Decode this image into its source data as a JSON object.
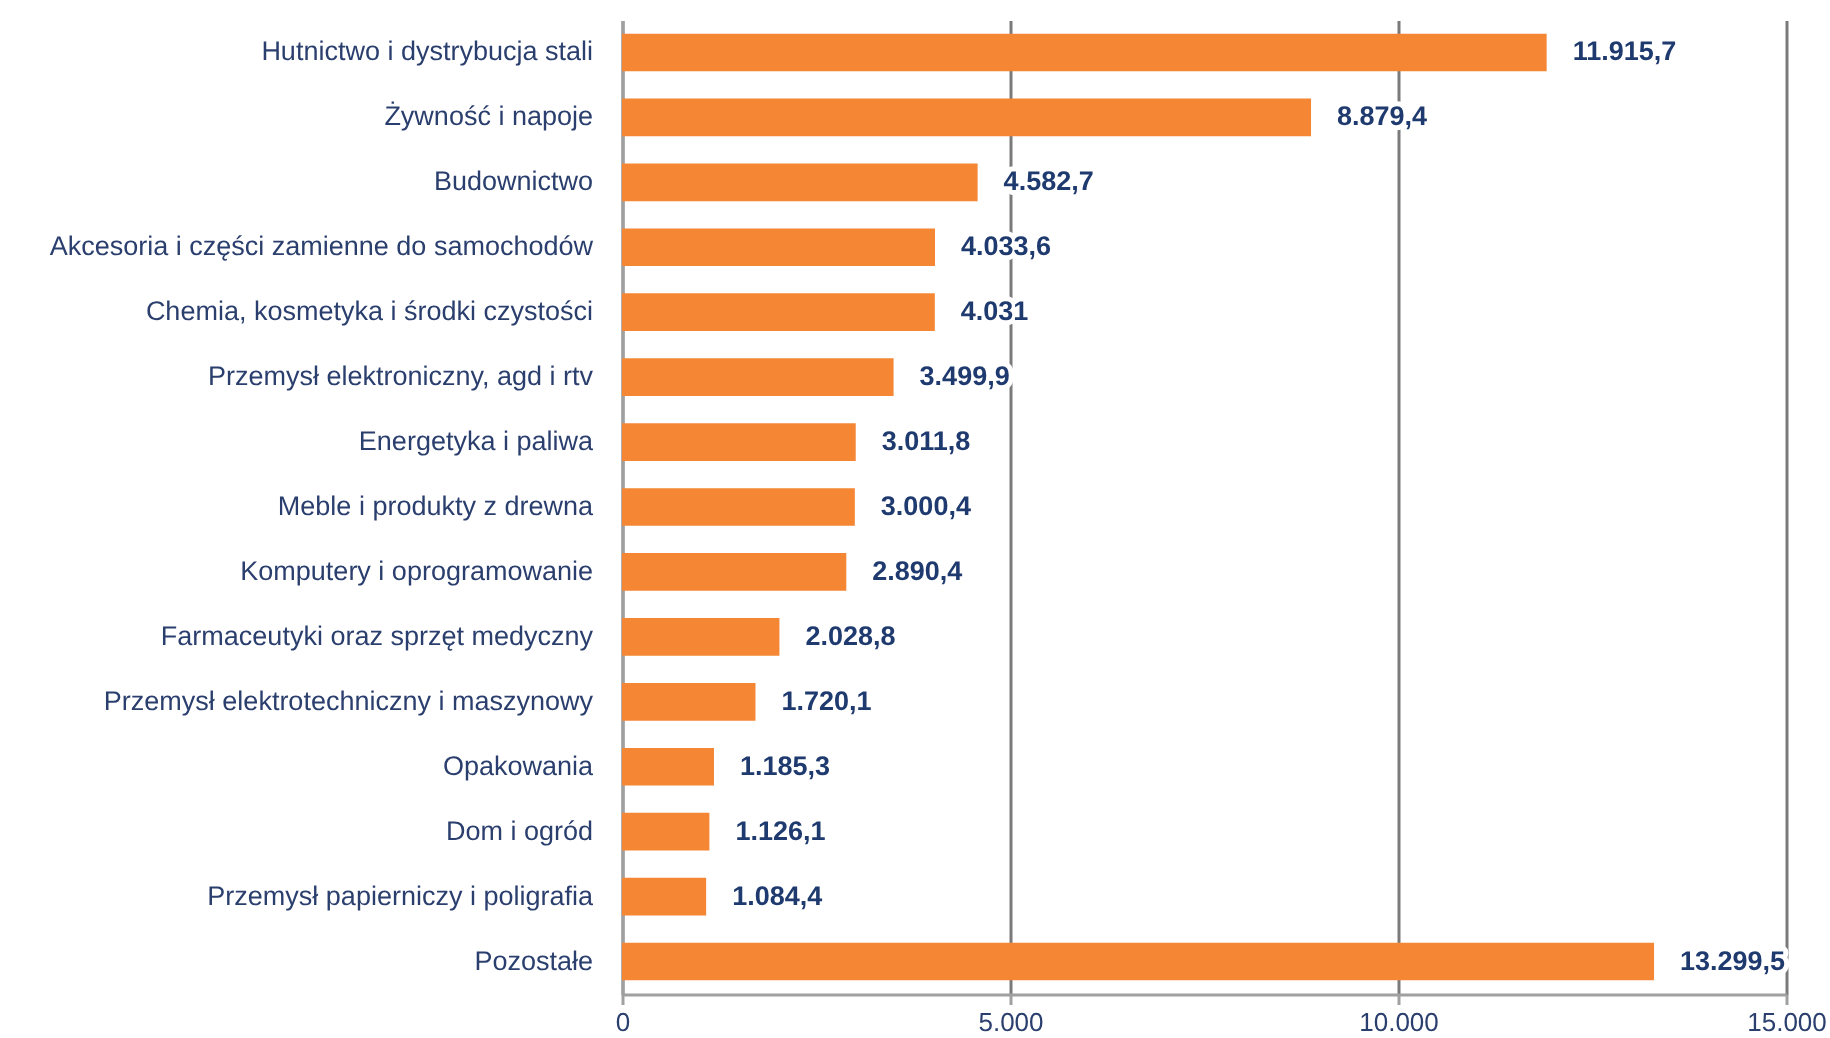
{
  "chart_data": {
    "type": "bar",
    "orientation": "horizontal",
    "categories": [
      "Hutnictwo i dystrybucja stali",
      "Żywność i napoje",
      "Budownictwo",
      "Akcesoria i części zamienne do samochodów",
      "Chemia, kosmetyka i środki czystości",
      "Przemysł elektroniczny, agd i rtv",
      "Energetyka i paliwa",
      "Meble i produkty z drewna",
      "Komputery i oprogramowanie",
      "Farmaceutyki oraz sprzęt medyczny",
      "Przemysł elektrotechniczny i maszynowy",
      "Opakowania",
      "Dom i ogród",
      "Przemysł papierniczy i poligrafia",
      "Pozostałe"
    ],
    "values": [
      11915.7,
      8879.4,
      4582.7,
      4033.6,
      4031,
      3499.9,
      3011.8,
      3000.4,
      2890.4,
      2028.8,
      1720.1,
      1185.3,
      1126.1,
      1084.4,
      13299.5
    ],
    "value_labels": [
      "11.915,7",
      "8.879,4",
      "4.582,7",
      "4.033,6",
      "4.031",
      "3.499,9",
      "3.011,8",
      "3.000,4",
      "2.890,4",
      "2.028,8",
      "1.720,1",
      "1.185,3",
      "1.126,1",
      "1.084,4",
      "13.299,5"
    ],
    "color": "#f58634",
    "xlim": [
      0,
      15000
    ],
    "xticks": [
      0,
      {
        "value": 5000,
        "label": "5.000"
      },
      {
        "value": 10000,
        "label": "10.000"
      },
      {
        "value": 15000,
        "label": "15.000"
      }
    ],
    "grid": "x"
  }
}
